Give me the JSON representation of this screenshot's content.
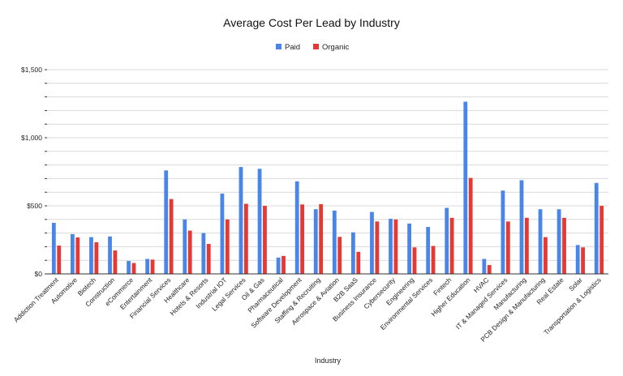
{
  "chart_data": {
    "type": "bar",
    "title": "Average Cost Per Lead by Industry",
    "xlabel": "Industry",
    "ylabel": "",
    "ylim": [
      0,
      1500
    ],
    "yticks": [
      0,
      500,
      1000,
      1500
    ],
    "ytick_labels": [
      "$0",
      "$500",
      "$1,000",
      "$1,500"
    ],
    "grid": true,
    "legend_position": "top-center",
    "categories": [
      "Addiction Treatment",
      "Automotive",
      "Biotech",
      "Construction",
      "eCommerce",
      "Entertainment",
      "Financial Services",
      "Healthcare",
      "Hotels & Resorts",
      "Industrial IOT",
      "Legal Services",
      "Oil & Gas",
      "Pharmaceutical",
      "Software Development",
      "Staffing & Recruiting",
      "Aerospace & Aviation",
      "B2B SaaS",
      "Business Insurance",
      "Cybersecurity",
      "Engineering",
      "Environmental Services",
      "Fintech",
      "Higher Education",
      "HVAC",
      "IT & Managed Services",
      "Manufacturing",
      "PCB Design & Manufacturing",
      "Real Estate",
      "Solar",
      "Transportation & Logistics"
    ],
    "series": [
      {
        "name": "Paid",
        "color": "#4a86e8",
        "values": [
          375,
          292,
          270,
          275,
          95,
          110,
          760,
          400,
          300,
          590,
          785,
          772,
          120,
          680,
          475,
          465,
          305,
          455,
          405,
          370,
          345,
          485,
          1265,
          110,
          612,
          688,
          475,
          475,
          212,
          668
        ]
      },
      {
        "name": "Organic",
        "color": "#e53935",
        "values": [
          208,
          268,
          232,
          172,
          80,
          105,
          550,
          318,
          220,
          400,
          515,
          500,
          132,
          510,
          512,
          272,
          162,
          385,
          400,
          195,
          205,
          412,
          705,
          65,
          385,
          412,
          270,
          412,
          195,
          500
        ]
      }
    ]
  }
}
